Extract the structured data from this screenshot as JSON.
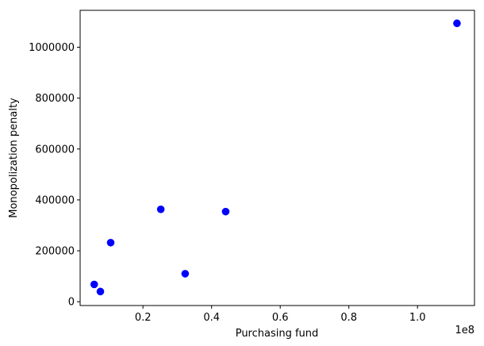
{
  "chart_data": {
    "type": "scatter",
    "title": "",
    "xlabel": "Purchasing fund",
    "ylabel": "Monopolization penalty",
    "x_offset_label": "1e8",
    "xlim": [
      1700000,
      116600000
    ],
    "ylim": [
      -15000,
      1145000
    ],
    "x_ticks": [
      {
        "value": 20000000,
        "label": "0.2"
      },
      {
        "value": 40000000,
        "label": "0.4"
      },
      {
        "value": 60000000,
        "label": "0.6"
      },
      {
        "value": 80000000,
        "label": "0.8"
      },
      {
        "value": 100000000,
        "label": "1.0"
      }
    ],
    "y_ticks": [
      {
        "value": 0,
        "label": "0"
      },
      {
        "value": 200000,
        "label": "200000"
      },
      {
        "value": 400000,
        "label": "400000"
      },
      {
        "value": 600000,
        "label": "600000"
      },
      {
        "value": 800000,
        "label": "800000"
      },
      {
        "value": 1000000,
        "label": "1000000"
      }
    ],
    "grid": false,
    "marker_color": "#0000ff",
    "points": [
      {
        "x": 5800000,
        "y": 68000
      },
      {
        "x": 7600000,
        "y": 40000
      },
      {
        "x": 10600000,
        "y": 232000
      },
      {
        "x": 25200000,
        "y": 363000
      },
      {
        "x": 32300000,
        "y": 110000
      },
      {
        "x": 44100000,
        "y": 354000
      },
      {
        "x": 111500000,
        "y": 1094000
      }
    ]
  }
}
